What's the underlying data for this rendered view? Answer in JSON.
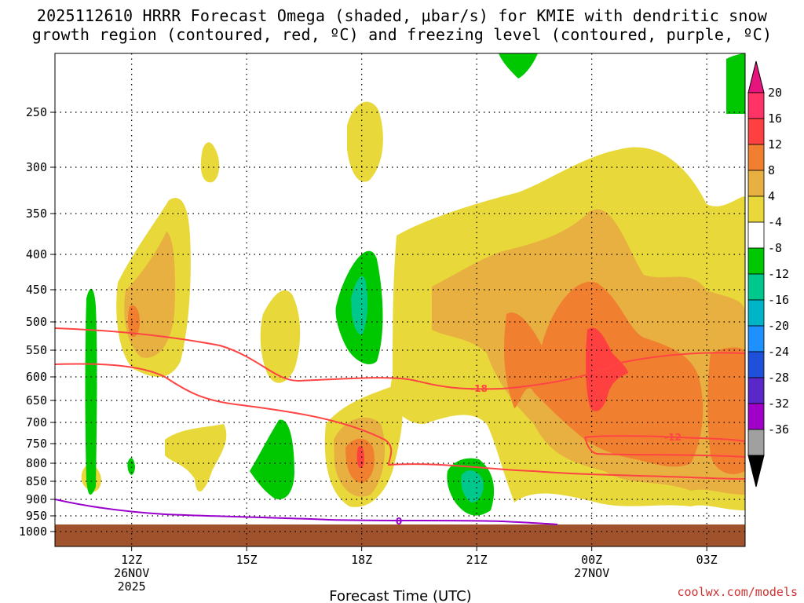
{
  "chart_data": {
    "type": "heatmap",
    "title_line1": "2025112610 HRRR Forecast Omega (shaded, μbar/s) for KMIE with dendritic snow",
    "title_line2": "growth region (contoured, red, ºC) and freezing level (contoured, purple, ºC)",
    "xlabel": "Forecast Time (UTC)",
    "x_ticks": [
      {
        "h": 12,
        "label": "12Z",
        "sub1": "26NOV",
        "sub2": "2025"
      },
      {
        "h": 15,
        "label": "15Z",
        "sub1": "",
        "sub2": ""
      },
      {
        "h": 18,
        "label": "18Z",
        "sub1": "",
        "sub2": ""
      },
      {
        "h": 21,
        "label": "21Z",
        "sub1": "",
        "sub2": ""
      },
      {
        "h": 24,
        "label": "00Z",
        "sub1": "27NOV",
        "sub2": ""
      },
      {
        "h": 27,
        "label": "03Z",
        "sub1": "",
        "sub2": ""
      }
    ],
    "x_range_hours": [
      10,
      28
    ],
    "y_ticks": [
      250,
      300,
      350,
      400,
      450,
      500,
      550,
      600,
      650,
      700,
      750,
      800,
      850,
      900,
      950,
      1000
    ],
    "y_range_hpa": [
      200,
      1000
    ],
    "colorbar": {
      "labels": [
        "20",
        "16",
        "12",
        "8",
        "4",
        "-4",
        "-8",
        "-12",
        "-16",
        "-20",
        "-24",
        "-28",
        "-32",
        "-36"
      ],
      "colors": [
        "#ff3366",
        "#ff4040",
        "#f08030",
        "#e8b040",
        "#e8d83a",
        "#ffffff",
        "#00c800",
        "#00c88c",
        "#00b4c8",
        "#1e90ff",
        "#1e50dc",
        "#5a28c8",
        "#a000c8",
        "#a0a0a0"
      ],
      "top_color": "#e6147d",
      "bottom_color": "#000000"
    },
    "contours": [
      {
        "name": "dgz-18C",
        "label": "-18",
        "color": "#ff4444"
      },
      {
        "name": "dgz-12C",
        "label": "-12",
        "color": "#ff4444"
      },
      {
        "name": "freezing-0C",
        "label": "0",
        "color": "#9900cc"
      }
    ],
    "ground_color": "#a0522d",
    "credit": "coolwx.com/models"
  }
}
